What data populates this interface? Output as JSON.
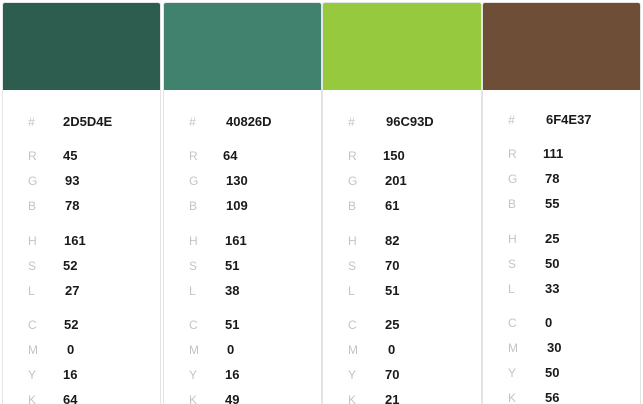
{
  "cards": [
    {
      "swatch_color": "#2D5D4E",
      "hex_label": "#",
      "hex": "2D5D4E",
      "rows": [
        {
          "label": "R",
          "value": "45"
        },
        {
          "label": "G",
          "value": "93"
        },
        {
          "label": "B",
          "value": "78"
        },
        {
          "label": "H",
          "value": "161"
        },
        {
          "label": "S",
          "value": "52"
        },
        {
          "label": "L",
          "value": "27"
        },
        {
          "label": "C",
          "value": "52"
        },
        {
          "label": "M",
          "value": "0"
        },
        {
          "label": "Y",
          "value": "16"
        },
        {
          "label": "K",
          "value": "64"
        }
      ]
    },
    {
      "swatch_color": "#40826D",
      "hex_label": "#",
      "hex": "40826D",
      "rows": [
        {
          "label": "R",
          "value": "64"
        },
        {
          "label": "G",
          "value": "130"
        },
        {
          "label": "B",
          "value": "109"
        },
        {
          "label": "H",
          "value": "161"
        },
        {
          "label": "S",
          "value": "51"
        },
        {
          "label": "L",
          "value": "38"
        },
        {
          "label": "C",
          "value": "51"
        },
        {
          "label": "M",
          "value": "0"
        },
        {
          "label": "Y",
          "value": "16"
        },
        {
          "label": "K",
          "value": "49"
        }
      ]
    },
    {
      "swatch_color": "#96C93D",
      "hex_label": "#",
      "hex": "96C93D",
      "rows": [
        {
          "label": "R",
          "value": "150"
        },
        {
          "label": "G",
          "value": "201"
        },
        {
          "label": "B",
          "value": "61"
        },
        {
          "label": "H",
          "value": "82"
        },
        {
          "label": "S",
          "value": "70"
        },
        {
          "label": "L",
          "value": "51"
        },
        {
          "label": "C",
          "value": "25"
        },
        {
          "label": "M",
          "value": "0"
        },
        {
          "label": "Y",
          "value": "70"
        },
        {
          "label": "K",
          "value": "21"
        }
      ]
    },
    {
      "swatch_color": "#6F4E37",
      "hex_label": "#",
      "hex": "6F4E37",
      "rows": [
        {
          "label": "R",
          "value": "111"
        },
        {
          "label": "G",
          "value": "78"
        },
        {
          "label": "B",
          "value": "55"
        },
        {
          "label": "H",
          "value": "25"
        },
        {
          "label": "S",
          "value": "50"
        },
        {
          "label": "L",
          "value": "33"
        },
        {
          "label": "C",
          "value": "0"
        },
        {
          "label": "M",
          "value": "30"
        },
        {
          "label": "Y",
          "value": "50"
        },
        {
          "label": "K",
          "value": "56"
        }
      ]
    }
  ]
}
